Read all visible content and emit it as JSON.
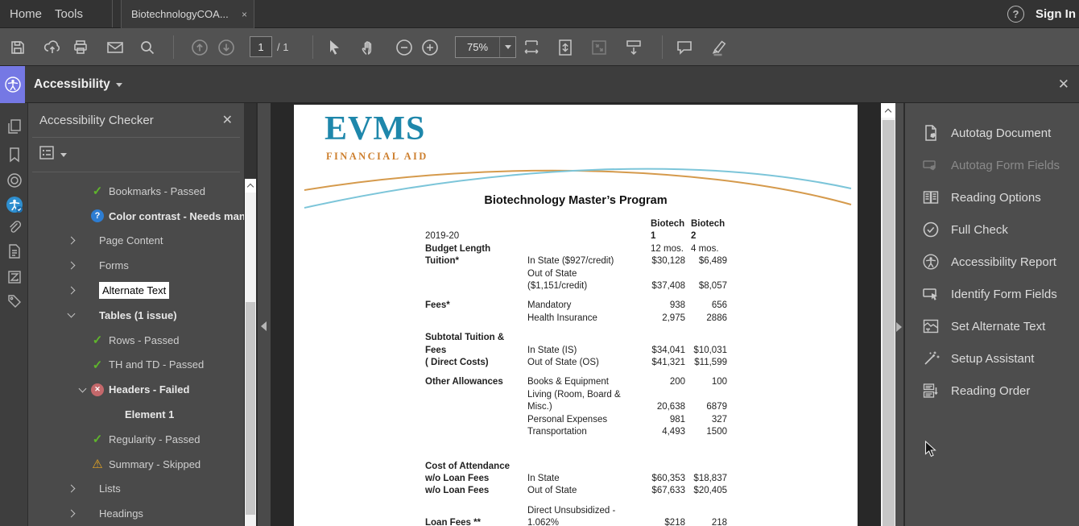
{
  "tab_bar": {
    "menu_items": [
      {
        "label": "Home"
      },
      {
        "label": "Tools"
      }
    ],
    "document_tab": {
      "label": "BiotechnologyCOA...",
      "close_glyph": "×"
    },
    "sign_in_label": "Sign In"
  },
  "toolbar": {
    "page_current": "1",
    "page_total_label": "/ 1",
    "zoom_level": "75%",
    "icons": [
      "save",
      "share",
      "print",
      "email",
      "find",
      "previous-page",
      "next-page",
      "select-tool",
      "hand-tool",
      "zoom-out",
      "zoom-in",
      "fit-width",
      "fit-page",
      "actual-size",
      "scrolling-mode",
      "comment",
      "highlight"
    ]
  },
  "accessibility_bar": {
    "title": "Accessibility",
    "close_glyph": "✕"
  },
  "left_strip": {
    "icons": [
      "page-thumbnails",
      "bookmarks",
      "destinations",
      "accessibility",
      "attachments",
      "content",
      "order",
      "tags"
    ],
    "active_icon": "accessibility"
  },
  "checker_panel": {
    "title": "Accessibility Checker",
    "close_glyph": "✕",
    "items": [
      {
        "label": "Bookmarks - Passed",
        "icon": "check",
        "indent": 1
      },
      {
        "label": "Color contrast - Needs manual check",
        "icon": "question",
        "indent": 1,
        "bold": true
      },
      {
        "label": "Page Content",
        "chev": "r",
        "indent": 0
      },
      {
        "label": "Forms",
        "chev": "r",
        "indent": 0
      },
      {
        "label": "Alternate Text",
        "chev": "r",
        "indent": 0,
        "hl": true
      },
      {
        "label": "Tables (1 issue)",
        "chev": "d",
        "indent": 0,
        "bold": true
      },
      {
        "label": "Rows - Passed",
        "icon": "check",
        "indent": 1
      },
      {
        "label": "TH and TD - Passed",
        "icon": "check",
        "indent": 1
      },
      {
        "label": "Headers - Failed",
        "icon": "fail",
        "chev": "d",
        "indent": 1,
        "bold": true
      },
      {
        "label": "Element 1",
        "indent": 2,
        "bold": true
      },
      {
        "label": "Regularity - Passed",
        "icon": "check",
        "indent": 1
      },
      {
        "label": "Summary - Skipped",
        "icon": "warn",
        "indent": 1
      },
      {
        "label": "Lists",
        "chev": "r",
        "indent": 0
      },
      {
        "label": "Headings",
        "chev": "r",
        "indent": 0
      }
    ]
  },
  "right_panel": {
    "tools": [
      {
        "label": "Autotag Document"
      },
      {
        "label": "Autotag Form Fields",
        "disabled": true
      },
      {
        "label": "Reading Options"
      },
      {
        "label": "Full Check"
      },
      {
        "label": "Accessibility Report"
      },
      {
        "label": "Identify Form Fields"
      },
      {
        "label": "Set Alternate Text"
      },
      {
        "label": "Setup Assistant"
      },
      {
        "label": "Reading Order"
      }
    ]
  },
  "document": {
    "logo_title": "EVMS",
    "logo_subtitle": "FINANCIAL AID",
    "title": "Biotechnology Master’s Program",
    "colors": {
      "logo_blue": "#1e87ab",
      "logo_orange": "#cd7f2e",
      "swoosh_blue": "#7cc5d9",
      "swoosh_orange": "#d59a4c"
    },
    "table_rows": [
      {
        "a": "Biotech",
        "b": "Biotech",
        "hdr": true,
        "ab": true
      },
      {
        "l": "2019-20",
        "a": "1",
        "b": "2",
        "hdr": true,
        "ab": true
      },
      {
        "l": "Budget Length",
        "lb": true,
        "a": "12 mos.",
        "b": "4 mos.",
        "hdr": true
      },
      {
        "l": "Tuition*",
        "lb": true,
        "s": "In State ($927/credit)",
        "a": "$30,128",
        "b": "$6,489"
      },
      {
        "s": "Out of State"
      },
      {
        "s": "($1,151/credit)",
        "a": "$37,408",
        "b": "$8,057"
      },
      {
        "l": "Fees*",
        "lb": true,
        "s": "Mandatory",
        "a": "938",
        "b": "656",
        "gap": 9
      },
      {
        "s": "Health Insurance",
        "a": "2,975",
        "b": "2886"
      },
      {
        "l": "Subtotal Tuition &",
        "lb": true,
        "gap": 9
      },
      {
        "l": "Fees",
        "lb": true,
        "s": "In State (IS)",
        "a": "$34,041",
        "b": "$10,031"
      },
      {
        "l": " ( Direct Costs)",
        "lb": true,
        "s": "Out of State (OS)",
        "a": "$41,321",
        "b": "$11,599"
      },
      {
        "l": "Other Allowances",
        "lb": true,
        "s": "Books & Equipment",
        "a": "200",
        "b": "100",
        "gap": 9
      },
      {
        "s": "Living (Room, Board &"
      },
      {
        "s": "Misc.)",
        "a": "20,638",
        "b": "6879"
      },
      {
        "s": "Personal Expenses",
        "a": "981",
        "b": "327"
      },
      {
        "s": "Transportation",
        "a": "4,493",
        "b": "1500"
      },
      {
        "l": "Cost of Attendance",
        "lb": true,
        "gap": 27
      },
      {
        "l": "w/o Loan Fees",
        "lb": true,
        "s": "In State",
        "a": "$60,353",
        "b": "$18,837"
      },
      {
        "l": "w/o Loan Fees",
        "lb": true,
        "s": "Out of State",
        "a": "$67,633",
        "b": "$20,405"
      },
      {
        "s": "Direct Unsubsidized -",
        "gap": 9
      },
      {
        "l": "Loan Fees **",
        "lb": true,
        "s": "1.062%",
        "a": "$218",
        "b": "218"
      }
    ]
  }
}
